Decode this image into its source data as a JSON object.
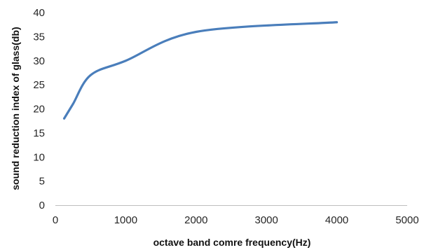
{
  "chart_data": {
    "type": "line",
    "title": "",
    "xlabel": "octave band comre frequency(Hz)",
    "ylabel": "sound reduction index of glass(db)",
    "xlim": [
      0,
      5000
    ],
    "ylim": [
      0,
      40
    ],
    "xticks": [
      0,
      1000,
      2000,
      3000,
      4000,
      5000
    ],
    "yticks": [
      0,
      5,
      10,
      15,
      20,
      25,
      30,
      35,
      40
    ],
    "grid": false,
    "legend": "none",
    "series": [
      {
        "color": "#4a7ebb",
        "x": [
          125,
          250,
          500,
          1000,
          2000,
          4000
        ],
        "y": [
          18,
          21,
          27,
          30,
          36,
          38
        ]
      }
    ]
  }
}
